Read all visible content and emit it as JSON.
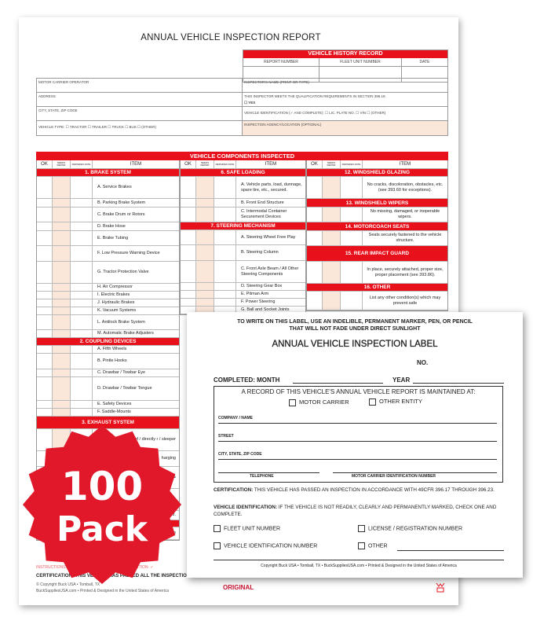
{
  "report": {
    "title": "ANNUAL VEHICLE INSPECTION REPORT",
    "history": {
      "heading": "VEHICLE HISTORY RECORD",
      "columns": [
        "REPORT NUMBER",
        "FLEET UNIT NUMBER",
        "DATE"
      ]
    },
    "info": [
      {
        "left": "MOTOR CARRIER OPERATOR",
        "right": "INSPECTOR'S NAME (PRINT OR TYPE)"
      },
      {
        "left": "ADDRESS",
        "right": "THIS INSPECTOR MEETS THE QUALIFICATION REQUIREMENTS IN SECTION 396.19.",
        "right2": "☐ YES"
      },
      {
        "left": "CITY, STATE, ZIP CODE",
        "right": "VEHICLE IDENTIFICATION (✓ AND COMPLETE):   ☐ LIC. PLATE NO.   ☐ VIN   ☐ (OTHER)"
      },
      {
        "left": "VEHICLE TYPE:    ☐ TRACTOR     ☐ TRAILER     ☐ TRUCK     ☐ BUS     ☐ (OTHER)",
        "right": "INSPECTION AGENCY/LOCATION (OPTIONAL)"
      }
    ],
    "components_heading": "VEHICLE COMPONENTS INSPECTED",
    "col_headers": {
      "ok": "OK",
      "needs": "NEEDS REPAIR",
      "repaired": "REPAIRED DATE",
      "item": "ITEM"
    },
    "columns": [
      [
        {
          "sec": "1. BRAKE SYSTEM"
        },
        {
          "t": "A.   Service Brakes",
          "h": 28
        },
        {
          "t": "B.   Parking Brake System",
          "h": 11
        },
        {
          "t": "C.   Brake Drum or Rotors",
          "h": 19
        },
        {
          "t": "D.   Brake Hose",
          "h": 11
        },
        {
          "t": "E.   Brake Tubing",
          "h": 19
        },
        {
          "t": "F.   Low Pressure Warning Device",
          "h": 20
        },
        {
          "t": "G.   Tractor Protection Valve",
          "h": 28
        },
        {
          "t": "H.   Air Compressor",
          "h": 10
        },
        {
          "t": "I.    Electric Brakes",
          "h": 10
        },
        {
          "t": "J.   Hydraulic Brakes",
          "h": 10
        },
        {
          "t": "K.   Vacuum Systems",
          "h": 10
        },
        {
          "t": "L.   Antilock Brake System",
          "h": 19
        },
        {
          "t": "M.   Automatic Brake Adjusters",
          "h": 10
        },
        {
          "sec": "2. COUPLING DEVICES"
        },
        {
          "t": "A.   Fifth Wheels",
          "h": 10
        },
        {
          "t": "B.   Pintle Hooks",
          "h": 20
        },
        {
          "t": "C.   Drawbar / Towbar Eye",
          "h": 10
        },
        {
          "t": "D.   Drawbar / Towbar Tongue",
          "h": 30
        },
        {
          "t": "E.   Safety Devices",
          "h": 10
        },
        {
          "t": "F.   Saddle-Mounts",
          "h": 10
        },
        {
          "sec": "3. EXHAUST SYSTEM",
          "h": 16
        },
        {
          "t": "ward of / directly r / sleeper",
          "h": 28,
          "r": 1
        },
        {
          "t": "harging",
          "h": 20,
          "r": 1
        },
        {
          "t": "&",
          "h": 28,
          "r": 1
        },
        {
          "t": "",
          "h": 28
        },
        {
          "t": "ched.",
          "h": 12,
          "r": 1
        },
        {
          "sec": "",
          "h": 9
        },
        {
          "t": "hts / reflectors",
          "h": 16,
          "r": 1
        }
      ],
      [
        {
          "sec": "6. SAFE LOADING"
        },
        {
          "t": "A.   Vehicle parts, load, dunnage, spare tire, etc., secured.",
          "h": 28
        },
        {
          "t": "B.   Front End Structure",
          "h": 11
        },
        {
          "t": "C.   Intermodal Container Securement Devices",
          "h": 19
        },
        {
          "sec": "7. STEERING MECHANISM"
        },
        {
          "t": "A.   Steering Wheel Free Play",
          "h": 19
        },
        {
          "t": "B.   Steering Column",
          "h": 20
        },
        {
          "t": "C.   Front Axle Beam / All Other Steering Components",
          "h": 28
        },
        {
          "t": "D.   Steering Gear Box",
          "h": 10
        },
        {
          "t": "E.   Pitman Arm",
          "h": 10
        },
        {
          "t": "F.   Power Steering",
          "h": 10
        },
        {
          "t": "G.   Ball and Socket Joints",
          "h": 10
        }
      ],
      [
        {
          "sec": "12. WINDSHIELD GLAZING"
        },
        {
          "x": "No cracks, discoloration, obstacles, etc. (see 393.60 for exceptions).",
          "h": 28
        },
        {
          "sec": "13. WINDSHIELD WIPERS",
          "h": 11
        },
        {
          "x": "No missing, damaged, or inoperable wipers.",
          "h": 19
        },
        {
          "sec": "14. MOTORCOACH SEATS",
          "h": 11
        },
        {
          "x": "Seats securely fastened to the vehicle structure.",
          "h": 19
        },
        {
          "sec": "15. REAR IMPACT GUARD",
          "h": 20
        },
        {
          "x": "In place, securely attached, proper size, proper placement (see 393.86).",
          "h": 28
        },
        {
          "sec": "16. OTHER",
          "h": 10
        },
        {
          "x": "List any other condition(s) which may prevent safe",
          "h": 24
        }
      ]
    ],
    "instructions": "INSTRUCTIONS: MARK COLU            RIES TO VERIFY INSPECTION:   ✓",
    "certification": "CERTIFICATION: THIS VEHICLE HAS PASSED ALL THE INSPECTION ITEMS FOR THE ANNUAL VEHICLE INSPECTION IN ACCORDANCE WITH 49 CFR PART 396.",
    "copyright1": "© Copyright Buck USA • Tomball, TX",
    "copyright2": "BuckSuppliesUSA.com • Printed & Designed in the United States of America",
    "copy_type": "ORIGINAL"
  },
  "badge": {
    "line1": "100",
    "line2": "Pack",
    "color": "#e0182a"
  },
  "label": {
    "notice1": "TO WRITE ON THIS LABEL, USE AN INDELIBLE, PERMANENT MARKER, PEN, OR PENCIL",
    "notice2": "THAT WILL NOT FADE UNDER DIRECT SUNLIGHT",
    "title": "ANNUAL VEHICLE INSPECTION LABEL",
    "no": "NO.",
    "month": "COMPLETED: MONTH",
    "year": "YEAR",
    "record": "A RECORD OF THIS VEHICLE'S ANNUAL VEHICLE REPORT IS MAINTAINED AT:",
    "motor_carrier": "MOTOR CARRIER",
    "other_entity": "OTHER ENTITY",
    "company": "COMPANY / NAME",
    "street": "STREET",
    "city": "CITY, STATE, ZIP CODE",
    "telephone": "TELEPHONE",
    "mcid": "MOTOR CARRIER IDENTIFICATION NUMBER",
    "cert_bold": "CERTIFICATION:",
    "cert": " THIS VEHICLE HAS PASSED AN INSPECTION IN ACCORDANCE WITH 49CFR 396.17 THROUGH 396.23.",
    "vid_bold": "VEHICLE IDENTIFICATION:",
    "vid": " IF THE VEHICLE IS NOT READILY, CLEARLY AND PERMANENTLY MARKED, CHECK ONE AND COMPLETE.",
    "fleet": "FLEET UNIT NUMBER",
    "license": "LICENSE / REGISTRATION NUMBER",
    "vin": "VEHICLE IDENTIFICATION NUMBER",
    "other": "OTHER",
    "copyright": "Copyright Buck USA • Tomball, TX • BuckSuppliesUSA.com • Printed & Designed in the United States of America"
  }
}
